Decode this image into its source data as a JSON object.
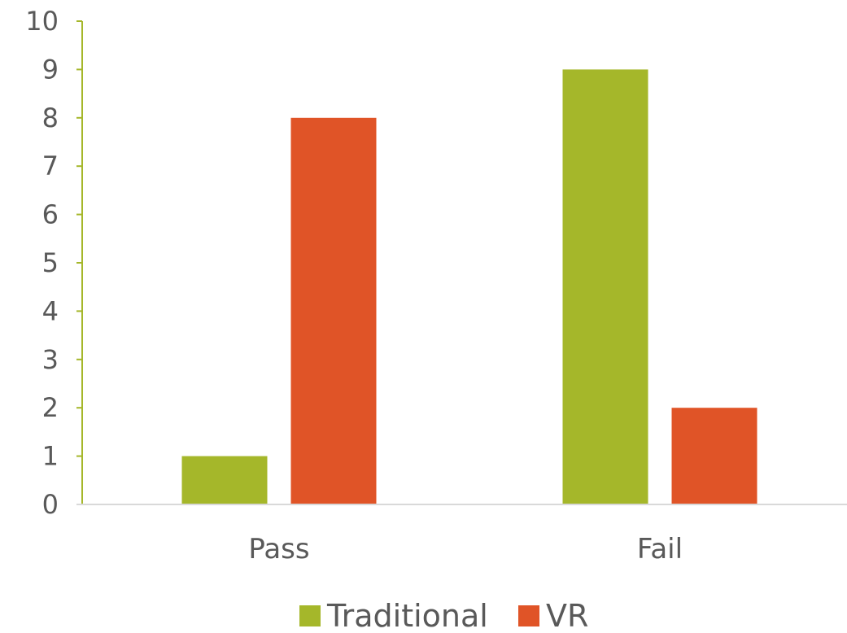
{
  "chart_data": {
    "type": "bar",
    "title": "",
    "xlabel": "",
    "ylabel": "",
    "categories": [
      "Pass",
      "Fail"
    ],
    "series": [
      {
        "name": "Traditional",
        "color": "#A5B72A",
        "values": [
          1,
          9
        ]
      },
      {
        "name": "VR",
        "color": "#E05427",
        "values": [
          8,
          2
        ]
      }
    ],
    "ylim": [
      0,
      10
    ],
    "yticks": [
      "0",
      "1",
      "2",
      "3",
      "4",
      "5",
      "6",
      "7",
      "8",
      "9",
      "10"
    ],
    "grid": false,
    "legend_position": "bottom",
    "axis_color": "#A5B72A",
    "baseline_color": "#D9D9D9"
  }
}
